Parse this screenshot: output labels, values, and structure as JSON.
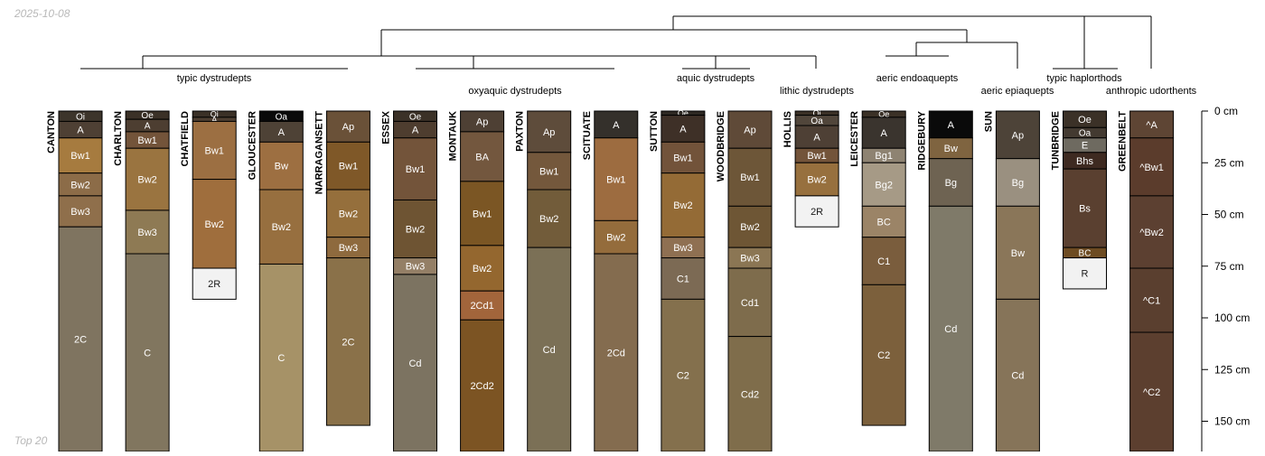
{
  "header": {
    "date": "2025-10-08"
  },
  "footer": {
    "label": "Top 20"
  },
  "colors": {
    "outline": "#000000",
    "dark_text": "#1a1a1a",
    "light_text": "#ffffff",
    "tree": "#000000"
  },
  "depth_axis": {
    "unit": "cm",
    "max_depth": 165,
    "ticks": [
      {
        "depth": 0,
        "label": "0 cm"
      },
      {
        "depth": 25,
        "label": "25 cm"
      },
      {
        "depth": 50,
        "label": "50 cm"
      },
      {
        "depth": 75,
        "label": "75 cm"
      },
      {
        "depth": 100,
        "label": "100 cm"
      },
      {
        "depth": 125,
        "label": "125 cm"
      },
      {
        "depth": 150,
        "label": "150 cm"
      }
    ]
  },
  "groups": [
    {
      "label": "typic dystrudepts"
    },
    {
      "label": "oxyaquic dystrudepts"
    },
    {
      "label": "aquic dystrudepts"
    },
    {
      "label": "lithic dystrudepts"
    },
    {
      "label": "aeric endoaquepts"
    },
    {
      "label": "aeric epiaquepts"
    },
    {
      "label": "typic haplorthods"
    },
    {
      "label": "anthropic udorthents"
    }
  ],
  "profiles": [
    {
      "name": "CANTON",
      "horizons": [
        {
          "name": "Oi",
          "top": 0,
          "bottom": 5,
          "color": "#3d352b"
        },
        {
          "name": "A",
          "top": 5,
          "bottom": 13,
          "color": "#4e4034"
        },
        {
          "name": "Bw1",
          "top": 13,
          "bottom": 30,
          "color": "#a67b3f"
        },
        {
          "name": "Bw2",
          "top": 30,
          "bottom": 41,
          "color": "#8c6c48"
        },
        {
          "name": "Bw3",
          "top": 41,
          "bottom": 56,
          "color": "#8f6f4b"
        },
        {
          "name": "2C",
          "top": 56,
          "bottom": 165,
          "color": "#7f7460"
        }
      ]
    },
    {
      "name": "CHARLTON",
      "horizons": [
        {
          "name": "Oe",
          "top": 0,
          "bottom": 4,
          "color": "#3b3127"
        },
        {
          "name": "A",
          "top": 4,
          "bottom": 10,
          "color": "#4d3e31"
        },
        {
          "name": "Bw1",
          "top": 10,
          "bottom": 18,
          "color": "#73543a"
        },
        {
          "name": "Bw2",
          "top": 18,
          "bottom": 48,
          "color": "#9a7440"
        },
        {
          "name": "Bw3",
          "top": 48,
          "bottom": 69,
          "color": "#8e7a54"
        },
        {
          "name": "C",
          "top": 69,
          "bottom": 165,
          "color": "#81765f"
        }
      ]
    },
    {
      "name": "CHATFIELD",
      "horizons": [
        {
          "name": "Oi",
          "top": 0,
          "bottom": 3,
          "color": "#3b3127"
        },
        {
          "name": "A",
          "top": 3,
          "bottom": 5,
          "color": "#4d3e31"
        },
        {
          "name": "Bw1",
          "top": 5,
          "bottom": 33,
          "color": "#9c6f42"
        },
        {
          "name": "Bw2",
          "top": 33,
          "bottom": 76,
          "color": "#9f6e3d"
        },
        {
          "name": "2R",
          "top": 76,
          "bottom": 91,
          "color": "#f2f2f2"
        }
      ]
    },
    {
      "name": "GLOUCESTER",
      "horizons": [
        {
          "name": "Oa",
          "top": 0,
          "bottom": 5,
          "color": "#0a0a0a"
        },
        {
          "name": "A",
          "top": 5,
          "bottom": 15,
          "color": "#4e4236"
        },
        {
          "name": "Bw",
          "top": 15,
          "bottom": 38,
          "color": "#9d6f41"
        },
        {
          "name": "Bw2",
          "top": 38,
          "bottom": 74,
          "color": "#976f3f"
        },
        {
          "name": "C",
          "top": 74,
          "bottom": 165,
          "color": "#a69267"
        }
      ]
    },
    {
      "name": "NARRAGANSETT",
      "horizons": [
        {
          "name": "Ap",
          "top": 0,
          "bottom": 15,
          "color": "#6a5138"
        },
        {
          "name": "Bw1",
          "top": 15,
          "bottom": 38,
          "color": "#7f5828"
        },
        {
          "name": "Bw2",
          "top": 38,
          "bottom": 61,
          "color": "#956f3c"
        },
        {
          "name": "Bw3",
          "top": 61,
          "bottom": 71,
          "color": "#8e6a3e"
        },
        {
          "name": "2C",
          "top": 71,
          "bottom": 152,
          "color": "#8a7149"
        }
      ]
    },
    {
      "name": "ESSEX",
      "horizons": [
        {
          "name": "Oe",
          "top": 0,
          "bottom": 5,
          "color": "#3b3127"
        },
        {
          "name": "A",
          "top": 5,
          "bottom": 13,
          "color": "#4e3d2f"
        },
        {
          "name": "Bw1",
          "top": 13,
          "bottom": 43,
          "color": "#73543a"
        },
        {
          "name": "Bw2",
          "top": 43,
          "bottom": 71,
          "color": "#6e5433"
        },
        {
          "name": "Bw3",
          "top": 71,
          "bottom": 79,
          "color": "#947f66"
        },
        {
          "name": "Cd",
          "top": 79,
          "bottom": 165,
          "color": "#7c7361"
        }
      ]
    },
    {
      "name": "MONTAUK",
      "horizons": [
        {
          "name": "Ap",
          "top": 0,
          "bottom": 10,
          "color": "#4e4034"
        },
        {
          "name": "BA",
          "top": 10,
          "bottom": 34,
          "color": "#73573e"
        },
        {
          "name": "Bw1",
          "top": 34,
          "bottom": 65,
          "color": "#7b5624"
        },
        {
          "name": "Bw2",
          "top": 65,
          "bottom": 87,
          "color": "#94672f"
        },
        {
          "name": "2Cd1",
          "top": 87,
          "bottom": 101,
          "color": "#a2653b"
        },
        {
          "name": "2Cd2",
          "top": 101,
          "bottom": 165,
          "color": "#7c5423"
        }
      ]
    },
    {
      "name": "PAXTON",
      "horizons": [
        {
          "name": "Ap",
          "top": 0,
          "bottom": 20,
          "color": "#5e4c3b"
        },
        {
          "name": "Bw1",
          "top": 20,
          "bottom": 38,
          "color": "#74583c"
        },
        {
          "name": "Bw2",
          "top": 38,
          "bottom": 66,
          "color": "#725c3a"
        },
        {
          "name": "Cd",
          "top": 66,
          "bottom": 165,
          "color": "#7b7056"
        }
      ]
    },
    {
      "name": "SCITUATE",
      "horizons": [
        {
          "name": "A",
          "top": 0,
          "bottom": 13,
          "color": "#34302b"
        },
        {
          "name": "Bw1",
          "top": 13,
          "bottom": 53,
          "color": "#9d6c40"
        },
        {
          "name": "Bw2",
          "top": 53,
          "bottom": 69,
          "color": "#946c3c"
        },
        {
          "name": "2Cd",
          "top": 69,
          "bottom": 165,
          "color": "#846c4f"
        }
      ]
    },
    {
      "name": "SUTTON",
      "horizons": [
        {
          "name": "Oe",
          "top": 0,
          "bottom": 2,
          "color": "#2e2923"
        },
        {
          "name": "A",
          "top": 2,
          "bottom": 15,
          "color": "#3e3027"
        },
        {
          "name": "Bw1",
          "top": 15,
          "bottom": 30,
          "color": "#72533a"
        },
        {
          "name": "Bw2",
          "top": 30,
          "bottom": 61,
          "color": "#946b36"
        },
        {
          "name": "Bw3",
          "top": 61,
          "bottom": 71,
          "color": "#8f7052"
        },
        {
          "name": "C1",
          "top": 71,
          "bottom": 91,
          "color": "#7c6a54"
        },
        {
          "name": "C2",
          "top": 91,
          "bottom": 165,
          "color": "#84704d"
        }
      ]
    },
    {
      "name": "WOODBRIDGE",
      "horizons": [
        {
          "name": "Ap",
          "top": 0,
          "bottom": 18,
          "color": "#5f4a38"
        },
        {
          "name": "Bw1",
          "top": 18,
          "bottom": 46,
          "color": "#6d5638"
        },
        {
          "name": "Bw2",
          "top": 46,
          "bottom": 66,
          "color": "#6e5635"
        },
        {
          "name": "Bw3",
          "top": 66,
          "bottom": 76,
          "color": "#8b7654"
        },
        {
          "name": "Cd1",
          "top": 76,
          "bottom": 109,
          "color": "#7e6c4c"
        },
        {
          "name": "Cd2",
          "top": 109,
          "bottom": 165,
          "color": "#7f6d4b"
        }
      ]
    },
    {
      "name": "HOLLIS",
      "horizons": [
        {
          "name": "Oi",
          "top": 0,
          "bottom": 2,
          "color": "#3b3127"
        },
        {
          "name": "Oa",
          "top": 2,
          "bottom": 7,
          "color": "#51463b"
        },
        {
          "name": "A",
          "top": 7,
          "bottom": 18,
          "color": "#4e4035"
        },
        {
          "name": "Bw1",
          "top": 18,
          "bottom": 25,
          "color": "#73543a"
        },
        {
          "name": "Bw2",
          "top": 25,
          "bottom": 41,
          "color": "#97703e"
        },
        {
          "name": "2R",
          "top": 41,
          "bottom": 56,
          "color": "#f2f2f2"
        }
      ]
    },
    {
      "name": "LEICESTER",
      "horizons": [
        {
          "name": "Oe",
          "top": 0,
          "bottom": 3,
          "color": "#3b3127"
        },
        {
          "name": "A",
          "top": 3,
          "bottom": 18,
          "color": "#3a342e"
        },
        {
          "name": "Bg1",
          "top": 18,
          "bottom": 25,
          "color": "#8e8372"
        },
        {
          "name": "Bg2",
          "top": 25,
          "bottom": 46,
          "color": "#a69a86"
        },
        {
          "name": "BC",
          "top": 46,
          "bottom": 61,
          "color": "#9b8467"
        },
        {
          "name": "C1",
          "top": 61,
          "bottom": 84,
          "color": "#7a5d3d"
        },
        {
          "name": "C2",
          "top": 84,
          "bottom": 152,
          "color": "#7c603c"
        }
      ]
    },
    {
      "name": "RIDGEBURY",
      "horizons": [
        {
          "name": "A",
          "top": 0,
          "bottom": 13,
          "color": "#0a0a0a"
        },
        {
          "name": "Bw",
          "top": 13,
          "bottom": 23,
          "color": "#7f6440"
        },
        {
          "name": "Bg",
          "top": 23,
          "bottom": 46,
          "color": "#6e6352"
        },
        {
          "name": "Cd",
          "top": 46,
          "bottom": 165,
          "color": "#7f7a69"
        }
      ]
    },
    {
      "name": "SUN",
      "horizons": [
        {
          "name": "Ap",
          "top": 0,
          "bottom": 23,
          "color": "#4d4338"
        },
        {
          "name": "Bg",
          "top": 23,
          "bottom": 46,
          "color": "#9a9080"
        },
        {
          "name": "Bw",
          "top": 46,
          "bottom": 91,
          "color": "#8a7659"
        },
        {
          "name": "Cd",
          "top": 91,
          "bottom": 165,
          "color": "#867459"
        }
      ]
    },
    {
      "name": "TUNBRIDGE",
      "horizons": [
        {
          "name": "Oe",
          "top": 0,
          "bottom": 8,
          "color": "#3b3127"
        },
        {
          "name": "Oa",
          "top": 8,
          "bottom": 13,
          "color": "#433a31"
        },
        {
          "name": "E",
          "top": 13,
          "bottom": 20,
          "color": "#6e6a60"
        },
        {
          "name": "Bhs",
          "top": 20,
          "bottom": 28,
          "color": "#3e2a21"
        },
        {
          "name": "Bs",
          "top": 28,
          "bottom": 66,
          "color": "#5a4030"
        },
        {
          "name": "BC",
          "top": 66,
          "bottom": 71,
          "color": "#6d4b22"
        },
        {
          "name": "R",
          "top": 71,
          "bottom": 86,
          "color": "#f2f2f2"
        }
      ]
    },
    {
      "name": "GREENBELT",
      "horizons": [
        {
          "name": "^A",
          "top": 0,
          "bottom": 13,
          "color": "#5e4534"
        },
        {
          "name": "^Bw1",
          "top": 13,
          "bottom": 41,
          "color": "#5b3c2c"
        },
        {
          "name": "^Bw2",
          "top": 41,
          "bottom": 76,
          "color": "#5c4031"
        },
        {
          "name": "^C1",
          "top": 76,
          "bottom": 107,
          "color": "#5a3f2f"
        },
        {
          "name": "^C2",
          "top": 107,
          "bottom": 165,
          "color": "#5c3f2f"
        }
      ]
    }
  ]
}
